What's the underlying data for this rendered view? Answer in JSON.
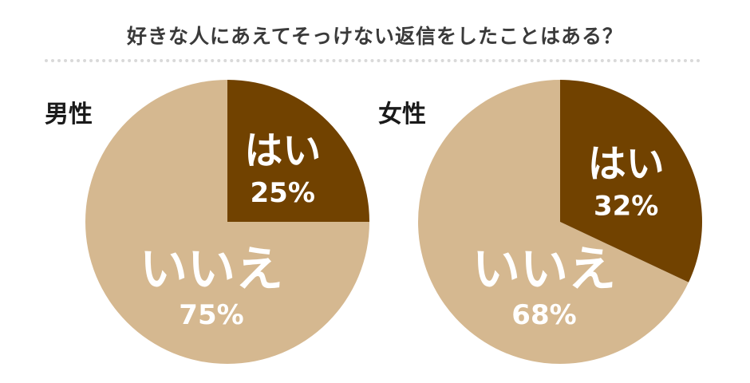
{
  "title": "好きな人にあえてそっけない返信をしたことはある？",
  "colors": {
    "yes": "#714200",
    "no": "#d5b890",
    "title_text": "#3a3a3a",
    "label_text": "#1a1a1a",
    "slice_text": "#ffffff",
    "divider": "#d9d9d9"
  },
  "chart_data": [
    {
      "type": "pie",
      "label": "男性",
      "slices": [
        {
          "name": "はい",
          "value": 25,
          "value_label": "25%"
        },
        {
          "name": "いいえ",
          "value": 75,
          "value_label": "75%"
        }
      ]
    },
    {
      "type": "pie",
      "label": "女性",
      "slices": [
        {
          "name": "はい",
          "value": 32,
          "value_label": "32%"
        },
        {
          "name": "いいえ",
          "value": 68,
          "value_label": "68%"
        }
      ]
    }
  ]
}
